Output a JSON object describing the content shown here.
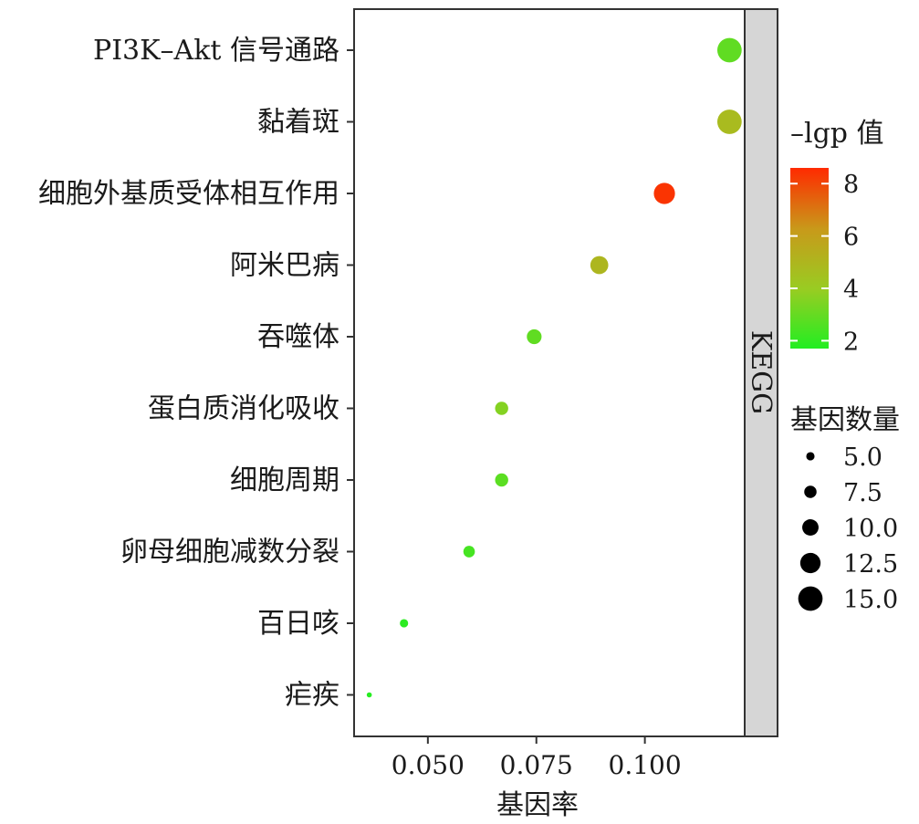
{
  "chart_data": {
    "type": "scatter",
    "xlabel": "基因率",
    "x_ticks": [
      0.05,
      0.075,
      0.1
    ],
    "x_tick_labels": [
      "0.050",
      "0.075",
      "0.100"
    ],
    "xlim": [
      0.033,
      0.123
    ],
    "facet_label": "KEGG",
    "categories": [
      "PI3K–Akt 信号通路",
      "黏着斑",
      "细胞外基质受体相互作用",
      "阿米巴病",
      "吞噬体",
      "蛋白质消化吸收",
      "细胞周期",
      "卵母细胞减数分裂",
      "百日咳",
      "疟疾"
    ],
    "points": [
      {
        "category": "PI3K–Akt 信号通路",
        "gene_ratio": 0.1195,
        "neg_log_p": 2.9,
        "count": 15
      },
      {
        "category": "黏着斑",
        "gene_ratio": 0.1195,
        "neg_log_p": 4.8,
        "count": 15
      },
      {
        "category": "细胞外基质受体相互作用",
        "gene_ratio": 0.1045,
        "neg_log_p": 8.4,
        "count": 13
      },
      {
        "category": "阿米巴病",
        "gene_ratio": 0.0895,
        "neg_log_p": 5.0,
        "count": 11
      },
      {
        "category": "吞噬体",
        "gene_ratio": 0.0745,
        "neg_log_p": 2.9,
        "count": 9
      },
      {
        "category": "蛋白质消化吸收",
        "gene_ratio": 0.067,
        "neg_log_p": 3.6,
        "count": 8
      },
      {
        "category": "细胞周期",
        "gene_ratio": 0.067,
        "neg_log_p": 2.8,
        "count": 8
      },
      {
        "category": "卵母细胞减数分裂",
        "gene_ratio": 0.0595,
        "neg_log_p": 2.4,
        "count": 7
      },
      {
        "category": "百日咳",
        "gene_ratio": 0.0445,
        "neg_log_p": 1.9,
        "count": 5
      },
      {
        "category": "疟疾",
        "gene_ratio": 0.0365,
        "neg_log_p": 1.8,
        "count": 3
      }
    ],
    "color_legend": {
      "title": "–lgp 值",
      "ticks": [
        2,
        4,
        6,
        8
      ],
      "range": [
        1.7,
        8.6
      ],
      "colors": [
        "#22ee22",
        "#99cc22",
        "#c89a1a",
        "#ff2a00"
      ]
    },
    "size_legend": {
      "title": "基因数量",
      "values": [
        5.0,
        7.5,
        10.0,
        12.5,
        15.0
      ],
      "labels": [
        "5.0",
        "7.5",
        "10.0",
        "12.5",
        "15.0"
      ]
    },
    "grid": false
  }
}
